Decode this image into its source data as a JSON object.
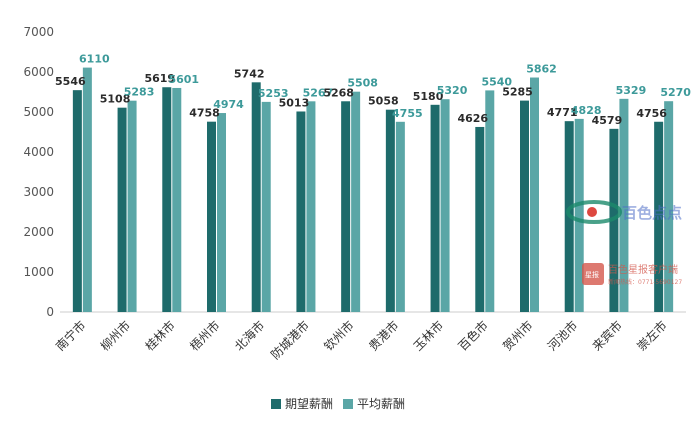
{
  "chart_data": {
    "type": "bar",
    "categories": [
      "南宁市",
      "柳州市",
      "桂林市",
      "梧州市",
      "北海市",
      "防城港市",
      "钦州市",
      "贵港市",
      "玉林市",
      "百色市",
      "贺州市",
      "河池市",
      "来宾市",
      "崇左市"
    ],
    "series": [
      {
        "name": "期望薪酬",
        "values": [
          5546,
          5108,
          5619,
          4758,
          5742,
          5013,
          5268,
          5058,
          5180,
          4626,
          5285,
          4771,
          4579,
          4756
        ]
      },
      {
        "name": "平均薪酬",
        "values": [
          6110,
          5283,
          5601,
          4974,
          5253,
          5267,
          5508,
          4755,
          5320,
          5540,
          5862,
          4828,
          5329,
          5270
        ]
      }
    ],
    "ylim": [
      0,
      7000
    ],
    "yticks": [
      0,
      1000,
      2000,
      3000,
      4000,
      5000,
      6000,
      7000
    ],
    "grid": false,
    "legend_position": "bottom-center",
    "colors": {
      "期望薪酬": "#1e6b6b",
      "平均薪酬": "#5aa6a6"
    }
  },
  "watermark": {
    "text": "百色点点",
    "app_box": "星报",
    "app_text": "百色星报客户端",
    "phone": "新闻热线：0771-5690127"
  }
}
